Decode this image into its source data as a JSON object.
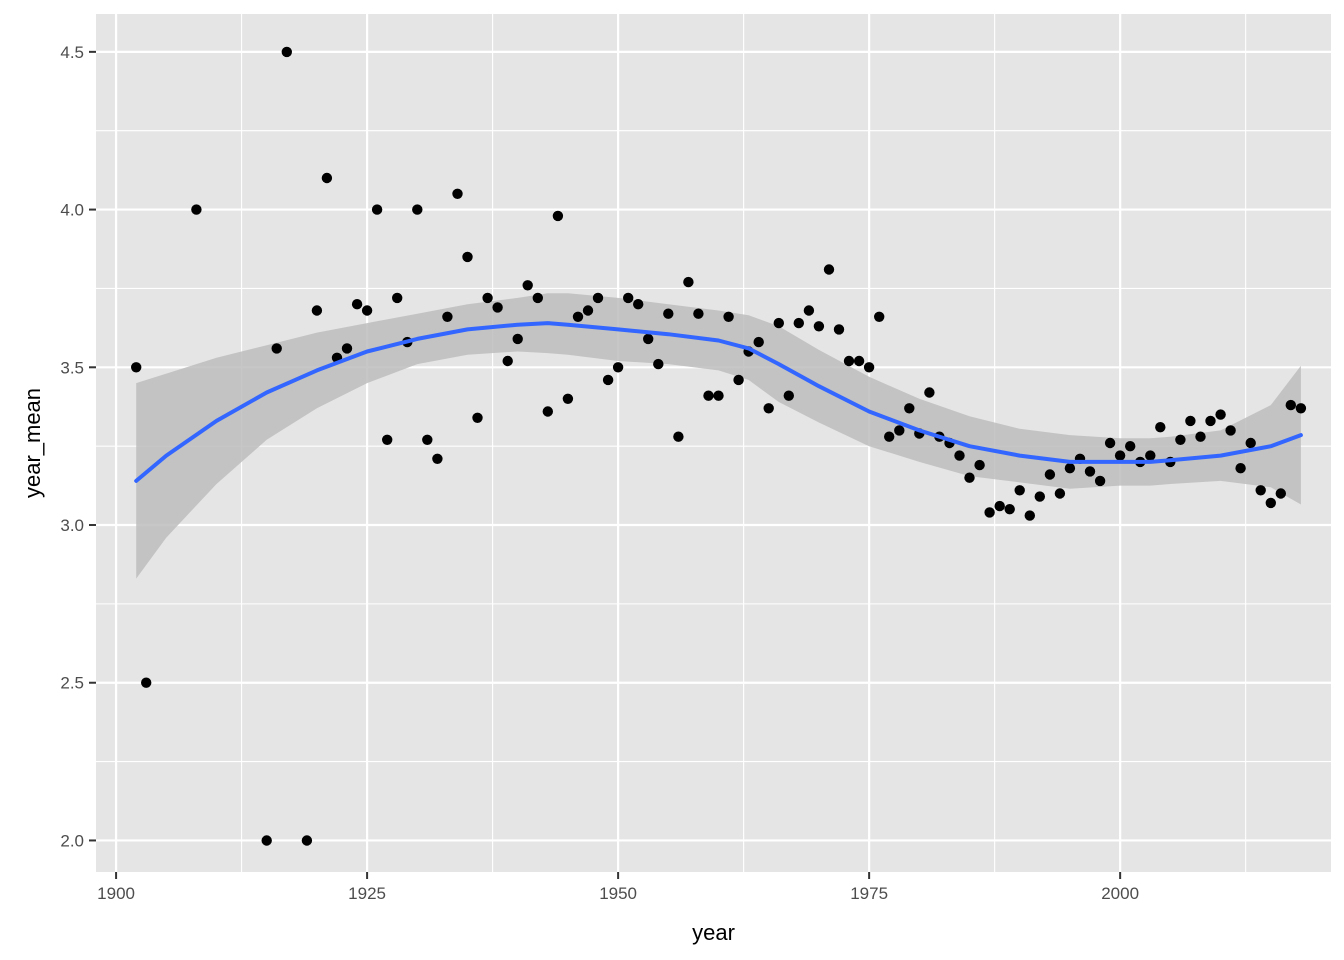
{
  "chart_data": {
    "type": "scatter",
    "xlabel": "year",
    "ylabel": "year_mean",
    "xlim": [
      1898,
      2021
    ],
    "ylim": [
      1.9,
      4.62
    ],
    "x_ticks": [
      1900,
      1925,
      1950,
      1975,
      2000
    ],
    "x_tick_labels": [
      "1900",
      "1925",
      "1950",
      "1975",
      "2000"
    ],
    "x_minor_ticks": [
      1912.5,
      1937.5,
      1962.5,
      1987.5,
      2012.5
    ],
    "y_ticks": [
      2.0,
      2.5,
      3.0,
      3.5,
      4.0,
      4.5
    ],
    "y_tick_labels": [
      "2.0",
      "2.5",
      "3.0",
      "3.5",
      "4.0",
      "4.5"
    ],
    "y_minor_ticks": [
      2.25,
      2.75,
      3.25,
      3.75,
      4.25
    ],
    "grid": true,
    "legend": "none",
    "colors": {
      "panel_background": "#e5e5e5",
      "grid_line": "#ffffff",
      "point": "#000000",
      "smooth_line": "#3366ff",
      "confidence_band": "#bdbdbd",
      "tick_label": "#4d4d4d",
      "tick_mark": "#333333"
    },
    "points": [
      [
        1902,
        3.5
      ],
      [
        1903,
        2.5
      ],
      [
        1908,
        4.0
      ],
      [
        1915,
        2.0
      ],
      [
        1916,
        3.56
      ],
      [
        1917,
        4.5
      ],
      [
        1919,
        2.0
      ],
      [
        1920,
        3.68
      ],
      [
        1921,
        4.1
      ],
      [
        1922,
        3.53
      ],
      [
        1923,
        3.56
      ],
      [
        1924,
        3.7
      ],
      [
        1925,
        3.68
      ],
      [
        1926,
        4.0
      ],
      [
        1927,
        3.27
      ],
      [
        1928,
        3.72
      ],
      [
        1929,
        3.58
      ],
      [
        1930,
        4.0
      ],
      [
        1931,
        3.27
      ],
      [
        1932,
        3.21
      ],
      [
        1933,
        3.66
      ],
      [
        1934,
        4.05
      ],
      [
        1935,
        3.85
      ],
      [
        1936,
        3.34
      ],
      [
        1937,
        3.72
      ],
      [
        1938,
        3.69
      ],
      [
        1939,
        3.52
      ],
      [
        1940,
        3.59
      ],
      [
        1941,
        3.76
      ],
      [
        1942,
        3.72
      ],
      [
        1943,
        3.36
      ],
      [
        1944,
        3.98
      ],
      [
        1945,
        3.4
      ],
      [
        1946,
        3.66
      ],
      [
        1947,
        3.68
      ],
      [
        1948,
        3.72
      ],
      [
        1949,
        3.46
      ],
      [
        1950,
        3.5
      ],
      [
        1951,
        3.72
      ],
      [
        1952,
        3.7
      ],
      [
        1953,
        3.59
      ],
      [
        1954,
        3.51
      ],
      [
        1955,
        3.67
      ],
      [
        1956,
        3.28
      ],
      [
        1957,
        3.77
      ],
      [
        1958,
        3.67
      ],
      [
        1959,
        3.41
      ],
      [
        1960,
        3.41
      ],
      [
        1961,
        3.66
      ],
      [
        1962,
        3.46
      ],
      [
        1963,
        3.55
      ],
      [
        1964,
        3.58
      ],
      [
        1965,
        3.37
      ],
      [
        1966,
        3.64
      ],
      [
        1967,
        3.41
      ],
      [
        1968,
        3.64
      ],
      [
        1969,
        3.68
      ],
      [
        1970,
        3.63
      ],
      [
        1971,
        3.81
      ],
      [
        1972,
        3.62
      ],
      [
        1973,
        3.52
      ],
      [
        1974,
        3.52
      ],
      [
        1975,
        3.5
      ],
      [
        1976,
        3.66
      ],
      [
        1977,
        3.28
      ],
      [
        1978,
        3.3
      ],
      [
        1979,
        3.37
      ],
      [
        1980,
        3.29
      ],
      [
        1981,
        3.42
      ],
      [
        1982,
        3.28
      ],
      [
        1983,
        3.26
      ],
      [
        1984,
        3.22
      ],
      [
        1985,
        3.15
      ],
      [
        1986,
        3.19
      ],
      [
        1987,
        3.04
      ],
      [
        1988,
        3.06
      ],
      [
        1989,
        3.05
      ],
      [
        1990,
        3.11
      ],
      [
        1991,
        3.03
      ],
      [
        1992,
        3.09
      ],
      [
        1993,
        3.16
      ],
      [
        1994,
        3.1
      ],
      [
        1995,
        3.18
      ],
      [
        1996,
        3.21
      ],
      [
        1997,
        3.17
      ],
      [
        1998,
        3.14
      ],
      [
        1999,
        3.26
      ],
      [
        2000,
        3.22
      ],
      [
        2001,
        3.25
      ],
      [
        2002,
        3.2
      ],
      [
        2003,
        3.22
      ],
      [
        2004,
        3.31
      ],
      [
        2005,
        3.2
      ],
      [
        2006,
        3.27
      ],
      [
        2007,
        3.33
      ],
      [
        2008,
        3.28
      ],
      [
        2009,
        3.33
      ],
      [
        2010,
        3.35
      ],
      [
        2011,
        3.3
      ],
      [
        2012,
        3.18
      ],
      [
        2013,
        3.26
      ],
      [
        2014,
        3.11
      ],
      [
        2015,
        3.07
      ],
      [
        2016,
        3.1
      ],
      [
        2017,
        3.38
      ],
      [
        2018,
        3.37
      ]
    ],
    "smooth": {
      "x": [
        1902,
        1905,
        1910,
        1915,
        1920,
        1925,
        1930,
        1935,
        1940,
        1943,
        1945,
        1950,
        1955,
        1960,
        1963,
        1966,
        1970,
        1975,
        1980,
        1985,
        1990,
        1995,
        2000,
        2003,
        2005,
        2010,
        2015,
        2018
      ],
      "y": [
        3.14,
        3.22,
        3.33,
        3.42,
        3.49,
        3.55,
        3.59,
        3.62,
        3.635,
        3.64,
        3.635,
        3.62,
        3.605,
        3.585,
        3.56,
        3.51,
        3.44,
        3.36,
        3.3,
        3.25,
        3.22,
        3.2,
        3.2,
        3.2,
        3.205,
        3.22,
        3.25,
        3.285
      ],
      "upper": [
        3.45,
        3.48,
        3.53,
        3.57,
        3.61,
        3.64,
        3.67,
        3.7,
        3.72,
        3.735,
        3.735,
        3.72,
        3.7,
        3.68,
        3.665,
        3.63,
        3.555,
        3.47,
        3.4,
        3.345,
        3.305,
        3.285,
        3.275,
        3.275,
        3.28,
        3.3,
        3.38,
        3.505
      ],
      "lower": [
        2.83,
        2.96,
        3.13,
        3.27,
        3.37,
        3.45,
        3.51,
        3.54,
        3.55,
        3.545,
        3.54,
        3.52,
        3.51,
        3.49,
        3.46,
        3.39,
        3.325,
        3.25,
        3.2,
        3.155,
        3.135,
        3.115,
        3.125,
        3.125,
        3.13,
        3.14,
        3.12,
        3.065
      ]
    }
  }
}
